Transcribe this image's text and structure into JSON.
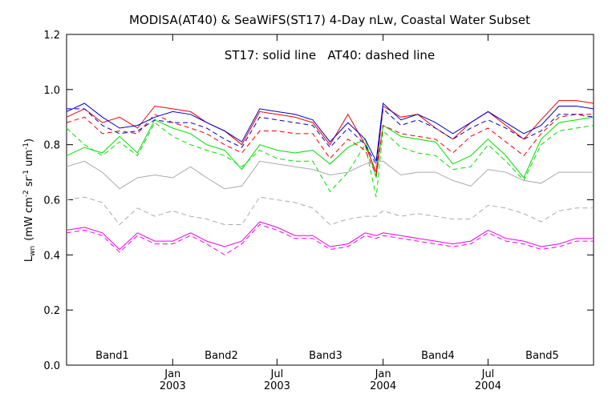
{
  "chart_data": {
    "type": "line",
    "title": "MODISA(AT40) & SeaWiFS(ST17) 4-Day nLw, Coastal Water Subset",
    "annotation": "ST17: solid line   AT40: dashed line",
    "ylabel": "L_wn (mW cm^-2 sr^-1 um^-1)",
    "ylabel_parts": {
      "base": "L",
      "sub": "wn",
      "unit_open": "(mW cm",
      "exp1": "-2",
      "mid1": " sr",
      "exp2": "-1",
      "mid2": " um",
      "exp3": "-1",
      "unit_close": ")"
    },
    "ylim": [
      0.0,
      1.2
    ],
    "y_ticks": [
      0.0,
      0.2,
      0.4,
      0.6,
      0.8,
      1.0,
      1.2
    ],
    "y_tick_labels": [
      "0.0",
      "0.2",
      "0.4",
      "0.6",
      "0.8",
      "1.0",
      "1.2"
    ],
    "xlim": [
      "2002-07-01",
      "2004-12-31"
    ],
    "x_ticks": [
      {
        "date": "2003-01-01",
        "line1": "Jan",
        "line2": "2003"
      },
      {
        "date": "2003-07-01",
        "line1": "Jul",
        "line2": "2003"
      },
      {
        "date": "2004-01-01",
        "line1": "Jan",
        "line2": "2004"
      },
      {
        "date": "2004-07-01",
        "line1": "Jul",
        "line2": "2004"
      }
    ],
    "x": [
      "2002-07-01",
      "2002-08-01",
      "2002-09-01",
      "2002-10-01",
      "2002-11-01",
      "2002-12-01",
      "2003-01-01",
      "2003-02-01",
      "2003-03-01",
      "2003-04-01",
      "2003-05-01",
      "2003-06-01",
      "2003-07-01",
      "2003-08-01",
      "2003-09-01",
      "2003-10-01",
      "2003-11-01",
      "2003-12-01",
      "2003-12-20",
      "2004-01-01",
      "2004-02-01",
      "2004-03-01",
      "2004-04-01",
      "2004-05-01",
      "2004-06-01",
      "2004-07-01",
      "2004-08-01",
      "2004-09-01",
      "2004-10-01",
      "2004-11-01",
      "2004-12-01",
      "2004-12-31"
    ],
    "series": [
      {
        "name": "Band1",
        "color": "#00dd00",
        "style": "solid",
        "values": [
          0.76,
          0.79,
          0.77,
          0.83,
          0.77,
          0.89,
          0.86,
          0.84,
          0.8,
          0.78,
          0.71,
          0.8,
          0.78,
          0.77,
          0.78,
          0.73,
          0.79,
          0.82,
          0.68,
          0.87,
          0.83,
          0.82,
          0.81,
          0.73,
          0.76,
          0.82,
          0.76,
          0.68,
          0.82,
          0.88,
          0.89,
          0.9
        ]
      },
      {
        "name": "Band1",
        "color": "#00dd00",
        "style": "dashed",
        "values": [
          0.86,
          0.8,
          0.76,
          0.81,
          0.76,
          0.88,
          0.83,
          0.8,
          0.78,
          0.76,
          0.72,
          0.78,
          0.75,
          0.74,
          0.74,
          0.63,
          0.7,
          0.8,
          0.61,
          0.85,
          0.79,
          0.77,
          0.76,
          0.71,
          0.72,
          0.8,
          0.74,
          0.67,
          0.8,
          0.85,
          0.86,
          0.87
        ]
      },
      {
        "name": "Band2",
        "color": "#ee0000",
        "style": "solid",
        "values": [
          0.9,
          0.93,
          0.88,
          0.9,
          0.86,
          0.94,
          0.93,
          0.92,
          0.88,
          0.85,
          0.8,
          0.92,
          0.91,
          0.9,
          0.88,
          0.8,
          0.91,
          0.8,
          0.7,
          0.94,
          0.9,
          0.91,
          0.86,
          0.82,
          0.88,
          0.92,
          0.87,
          0.82,
          0.89,
          0.96,
          0.96,
          0.95
        ]
      },
      {
        "name": "Band2",
        "color": "#ee0000",
        "style": "dashed",
        "values": [
          0.88,
          0.9,
          0.84,
          0.85,
          0.84,
          0.91,
          0.88,
          0.86,
          0.84,
          0.8,
          0.77,
          0.85,
          0.85,
          0.84,
          0.84,
          0.75,
          0.82,
          0.78,
          0.69,
          0.87,
          0.84,
          0.83,
          0.82,
          0.77,
          0.83,
          0.86,
          0.81,
          0.76,
          0.84,
          0.9,
          0.91,
          0.91
        ]
      },
      {
        "name": "Band3",
        "color": "#0000cc",
        "style": "solid",
        "values": [
          0.92,
          0.95,
          0.9,
          0.86,
          0.87,
          0.9,
          0.92,
          0.91,
          0.88,
          0.85,
          0.81,
          0.93,
          0.92,
          0.91,
          0.89,
          0.81,
          0.88,
          0.82,
          0.74,
          0.95,
          0.89,
          0.91,
          0.88,
          0.84,
          0.88,
          0.92,
          0.88,
          0.84,
          0.87,
          0.94,
          0.94,
          0.93
        ]
      },
      {
        "name": "Band3",
        "color": "#0000cc",
        "style": "dashed",
        "values": [
          0.93,
          0.93,
          0.87,
          0.84,
          0.85,
          0.89,
          0.88,
          0.88,
          0.86,
          0.82,
          0.79,
          0.9,
          0.89,
          0.88,
          0.87,
          0.79,
          0.86,
          0.8,
          0.73,
          0.93,
          0.87,
          0.89,
          0.86,
          0.82,
          0.86,
          0.89,
          0.86,
          0.82,
          0.85,
          0.91,
          0.91,
          0.9
        ]
      },
      {
        "name": "Band4",
        "color": "#aaaaaa",
        "style": "solid",
        "values": [
          0.72,
          0.74,
          0.7,
          0.64,
          0.68,
          0.69,
          0.68,
          0.72,
          0.68,
          0.64,
          0.65,
          0.74,
          0.73,
          0.72,
          0.71,
          0.69,
          0.7,
          0.73,
          0.74,
          0.74,
          0.69,
          0.7,
          0.7,
          0.67,
          0.65,
          0.71,
          0.7,
          0.67,
          0.66,
          0.7,
          0.7,
          0.7
        ]
      },
      {
        "name": "Band4",
        "color": "#aaaaaa",
        "style": "dashed",
        "values": [
          0.6,
          0.61,
          0.59,
          0.51,
          0.57,
          0.54,
          0.56,
          0.54,
          0.53,
          0.51,
          0.51,
          0.61,
          0.6,
          0.59,
          0.57,
          0.51,
          0.53,
          0.54,
          0.54,
          0.56,
          0.54,
          0.55,
          0.54,
          0.53,
          0.53,
          0.58,
          0.57,
          0.55,
          0.52,
          0.56,
          0.57,
          0.57
        ]
      },
      {
        "name": "Band5",
        "color": "#ee00ee",
        "style": "solid",
        "values": [
          0.49,
          0.5,
          0.48,
          0.42,
          0.48,
          0.45,
          0.45,
          0.48,
          0.45,
          0.43,
          0.45,
          0.52,
          0.5,
          0.47,
          0.47,
          0.43,
          0.44,
          0.48,
          0.47,
          0.48,
          0.47,
          0.46,
          0.45,
          0.44,
          0.45,
          0.49,
          0.46,
          0.45,
          0.43,
          0.44,
          0.46,
          0.46
        ]
      },
      {
        "name": "Band5",
        "color": "#ee00ee",
        "style": "dashed",
        "values": [
          0.48,
          0.49,
          0.47,
          0.41,
          0.47,
          0.44,
          0.44,
          0.47,
          0.44,
          0.4,
          0.44,
          0.51,
          0.49,
          0.46,
          0.46,
          0.42,
          0.43,
          0.47,
          0.46,
          0.47,
          0.46,
          0.45,
          0.44,
          0.43,
          0.44,
          0.48,
          0.45,
          0.44,
          0.42,
          0.43,
          0.45,
          0.45
        ]
      }
    ],
    "legend": [
      {
        "label": "Band1",
        "color": "#00dd00"
      },
      {
        "label": "Band2",
        "color": "#ee0000"
      },
      {
        "label": "Band3",
        "color": "#0000cc"
      },
      {
        "label": "Band4",
        "color": "#aaaaaa"
      },
      {
        "label": "Band5",
        "color": "#ee00ee"
      }
    ],
    "legend_placement": "bottom inside plot",
    "grid": false
  }
}
